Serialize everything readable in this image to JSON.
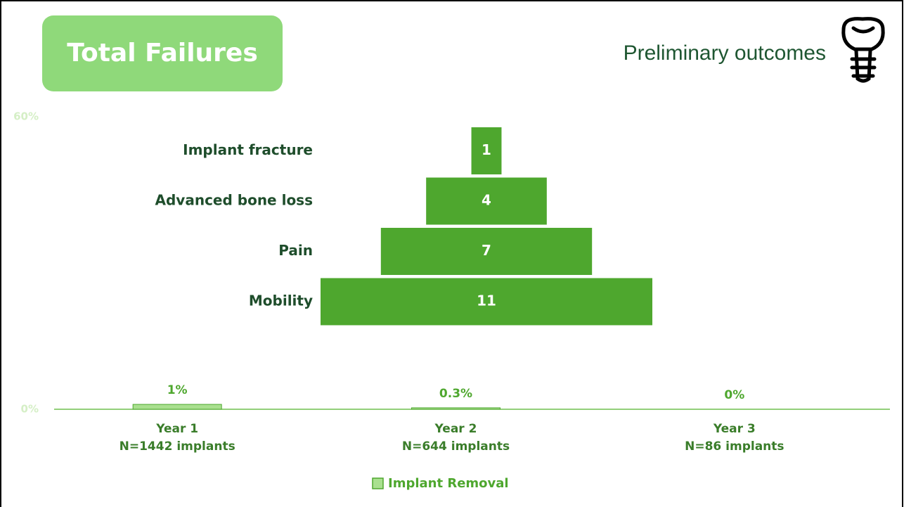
{
  "header": {
    "title": "Total Failures",
    "subtitle": "Preliminary outcomes"
  },
  "chart_data": [
    {
      "type": "funnel",
      "categories": [
        "Implant fracture",
        "Advanced bone loss",
        "Pain",
        "Mobility"
      ],
      "values": [
        1,
        4,
        7,
        11
      ],
      "color": "#4ea72e"
    },
    {
      "type": "bar",
      "categories": [
        [
          "Year 1",
          "N=1442 implants"
        ],
        [
          "Year 2",
          "N=644 implants"
        ],
        [
          "Year 3",
          "N=86 implants"
        ]
      ],
      "series": [
        {
          "name": "Implant Removal",
          "color": "#a9e08f",
          "values": [
            1,
            0.3,
            0
          ],
          "value_labels": [
            "1%",
            "0.3%",
            "0%"
          ]
        }
      ],
      "ylim": [
        0,
        60
      ],
      "yticks": [
        {
          "value": 0,
          "label": "0%"
        },
        {
          "value": 60,
          "label": "60%"
        }
      ],
      "legend": "bottom"
    }
  ]
}
